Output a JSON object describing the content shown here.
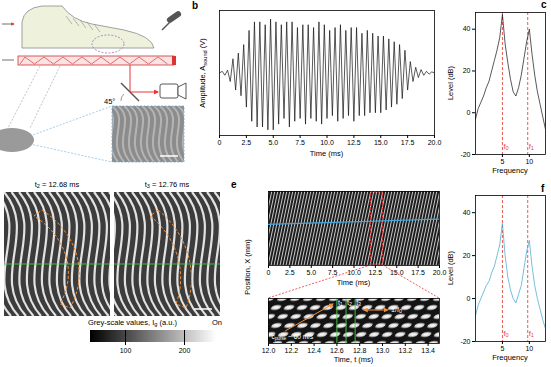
{
  "chart_data": [
    {
      "panel_label": "b",
      "type": "line",
      "x_label": "Time (ms)",
      "y_label": {
        "text": "Amplitude, A",
        "subscript": "sound",
        "after": " (V)"
      },
      "x": [
        0,
        0.25,
        0.5,
        0.75,
        1,
        1.25,
        1.5,
        1.75,
        2,
        2.25,
        2.5,
        2.75,
        3,
        3.25,
        3.5,
        3.75,
        4,
        4.25,
        4.5,
        4.75,
        5,
        5.25,
        5.5,
        5.75,
        6,
        6.25,
        6.5,
        6.75,
        7,
        7.25,
        7.5,
        7.75,
        8,
        8.25,
        8.5,
        8.75,
        9,
        9.25,
        9.5,
        9.75,
        10,
        10.25,
        10.5,
        10.75,
        11,
        11.25,
        11.5,
        11.75,
        12,
        12.25,
        12.5,
        12.75,
        13,
        13.25,
        13.5,
        13.75,
        14,
        14.25,
        14.5,
        14.75,
        15,
        15.25,
        15.5,
        15.75,
        16,
        16.25,
        16.5,
        16.75,
        17,
        17.25,
        17.5,
        17.75,
        18,
        18.25,
        18.5,
        18.75,
        19,
        19.25,
        19.5,
        19.75,
        20
      ],
      "series": [
        {
          "color": "#111111",
          "values": [
            0,
            0.03,
            -0.04,
            0.05,
            -0.15,
            0.25,
            -0.3,
            0.35,
            -0.4,
            0.5,
            -0.6,
            0.75,
            -0.85,
            0.9,
            -0.95,
            0.9,
            -0.95,
            0.85,
            -1,
            0.95,
            -1,
            0.9,
            -0.9,
            0.85,
            -0.8,
            0.9,
            -0.95,
            0.9,
            -0.85,
            0.8,
            -0.8,
            0.85,
            -0.9,
            0.85,
            -0.8,
            0.8,
            -0.85,
            0.9,
            -0.9,
            0.85,
            -0.8,
            0.75,
            -0.75,
            0.8,
            -0.85,
            0.85,
            -0.8,
            0.75,
            -0.75,
            0.8,
            -0.85,
            0.8,
            -0.75,
            0.7,
            -0.75,
            0.75,
            -0.7,
            0.7,
            -0.7,
            0.65,
            -0.7,
            0.65,
            -0.65,
            0.6,
            -0.6,
            0.55,
            -0.55,
            0.5,
            -0.45,
            0.4,
            -0.3,
            0.2,
            -0.15,
            0.1,
            -0.08,
            0.06,
            -0.04,
            0.03,
            -0.02,
            0.02,
            0
          ]
        }
      ],
      "xlim": [
        0,
        20
      ],
      "xticks": [
        0,
        2.5,
        {
          "value": 5,
          "label": "5.0"
        },
        7.5,
        {
          "value": 10,
          "label": "10.0"
        },
        12.5,
        {
          "value": 15,
          "label": "15.0"
        },
        17.5,
        {
          "value": 20,
          "label": "20.0"
        }
      ],
      "ylim": [
        -1.1,
        1.1
      ],
      "yticks": [],
      "tick_labels": "x"
    },
    {
      "panel_label": "c",
      "type": "line",
      "x_label": "Frequency",
      "y_label": "Level (dB)",
      "x": [
        0,
        0.5,
        1,
        1.5,
        2,
        2.5,
        3,
        3.5,
        4,
        4.5,
        5,
        5.5,
        6,
        6.5,
        7,
        7.5,
        8,
        8.5,
        9,
        9.5,
        10,
        10.5,
        11,
        11.5,
        12,
        12.5,
        13
      ],
      "series": [
        {
          "color": "#111111",
          "values": [
            -3,
            2,
            5,
            8,
            12,
            15,
            20,
            25,
            30,
            36,
            47,
            33,
            24,
            16,
            10,
            8,
            12,
            18,
            26,
            34,
            40,
            28,
            18,
            10,
            4,
            -2,
            -8
          ]
        }
      ],
      "markers": [
        {
          "label": {
            "text": "f",
            "subscript": "0"
          },
          "value": 5,
          "color": "#e8453c",
          "line_style": "dashed"
        },
        {
          "label": {
            "text": "f",
            "subscript": "1"
          },
          "value": 9.7,
          "color": "#e8453c",
          "line_style": "dashed"
        }
      ],
      "xlim": [
        0,
        13
      ],
      "xticks": [
        5,
        10
      ],
      "ylim": [
        -20,
        48
      ],
      "yticks": [
        -20,
        0,
        20,
        40
      ]
    },
    {
      "panel_label": "e",
      "type": "image",
      "x_label": "Time (ms)",
      "y_label": "Position, X (mm)",
      "xlim": [
        0,
        20
      ],
      "xticks": [
        0,
        2.5,
        {
          "value": 5,
          "label": "5.0"
        },
        7.5,
        {
          "value": 10,
          "label": "10.0"
        },
        12.5,
        {
          "value": 15,
          "label": "15.0"
        },
        17.5,
        {
          "value": 20,
          "label": "20.0"
        }
      ],
      "highlight_range": [
        12.0,
        13.4
      ],
      "tick_labels": "x"
    },
    {
      "type": "image",
      "x_label": "Time, t (ms)",
      "xlim": [
        12.0,
        13.5
      ],
      "xticks": [
        {
          "value": 12,
          "label": "12.0"
        },
        12.2,
        12.4,
        12.6,
        12.8,
        {
          "value": 13,
          "label": "13.0"
        },
        13.2,
        13.4
      ],
      "markers": [
        {
          "label": {
            "text": "t",
            "subscript": "1"
          },
          "value": 12.6,
          "color": "#4cd34c",
          "line_style": "solid"
        },
        {
          "label": {
            "text": "t",
            "subscript": "2"
          },
          "value": 12.68,
          "color": "#4cd34c",
          "line_style": "solid"
        },
        {
          "label": {
            "text": "t",
            "subscript": "3"
          },
          "value": 12.76,
          "color": "#4cd34c",
          "line_style": "solid"
        }
      ],
      "annotations": [
        {
          "text": "1/f",
          "subscript": "0"
        },
        {
          "text": "c",
          "subscript": "pulse",
          "after": " ~ 60 m/s"
        }
      ],
      "tick_labels": "x"
    },
    {
      "panel_label": "f",
      "type": "line",
      "x_label": "Frequency",
      "y_label": "Level (dB)",
      "x": [
        0,
        0.5,
        1,
        1.5,
        2,
        2.5,
        3,
        3.5,
        4,
        4.5,
        5,
        5.5,
        6,
        6.5,
        7,
        7.5,
        8,
        8.5,
        9,
        9.5,
        10,
        10.5,
        11,
        11.5,
        12,
        12.5,
        13
      ],
      "series": [
        {
          "color": "#3ba3d0",
          "values": [
            -8,
            -3,
            0,
            3,
            6,
            8,
            12,
            15,
            20,
            25,
            35,
            20,
            10,
            4,
            0,
            -2,
            2,
            6,
            14,
            22,
            27,
            15,
            6,
            0,
            -5,
            -10,
            -14
          ]
        }
      ],
      "markers": [
        {
          "label": {
            "text": "f",
            "subscript": "0"
          },
          "value": 5,
          "color": "#e8453c",
          "line_style": "dashed"
        },
        {
          "label": {
            "text": "f",
            "subscript": "1"
          },
          "value": 9.7,
          "color": "#e8453c",
          "line_style": "dashed"
        }
      ],
      "xlim": [
        0,
        13
      ],
      "xticks": [
        5,
        10
      ],
      "ylim": [
        -20,
        48
      ],
      "yticks": [
        -20,
        0,
        20,
        40
      ]
    }
  ],
  "panel_a": {
    "mirror_angle_label": "45°"
  },
  "panel_d": {
    "frames": [
      {
        "text": "t",
        "subscript": "2",
        "after": " = 12.68 ms"
      },
      {
        "text": "t",
        "subscript": "3",
        "after": " = 12.76 ms"
      }
    ],
    "colorbar": {
      "label": {
        "text": "Grey-scale values, I",
        "subscript": "g",
        "after": " (a.u.)"
      },
      "range": [
        40,
        255
      ],
      "ticks": [
        100,
        200
      ],
      "end_label": "On"
    }
  }
}
